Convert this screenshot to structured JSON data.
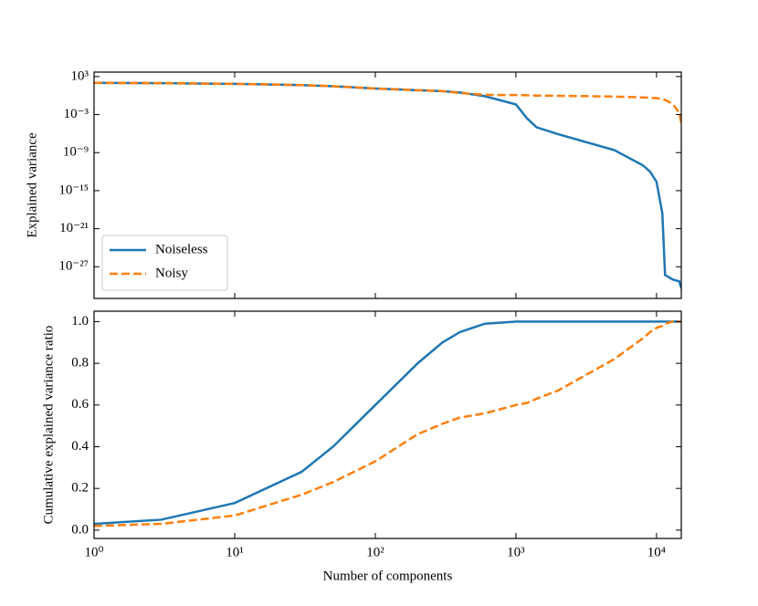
{
  "chart_data": [
    {
      "type": "line",
      "ylabel": "Explained variance",
      "xscale": "log",
      "yscale": "log",
      "x": [
        1,
        3,
        10,
        30,
        50,
        100,
        200,
        300,
        400,
        600,
        1000,
        1200,
        1400,
        2000,
        5000,
        8000,
        9000,
        10000,
        11000,
        11500,
        13000,
        14500,
        15000
      ],
      "xlim": [
        1,
        15000
      ],
      "xticks": [
        1,
        10,
        100,
        1000,
        10000
      ],
      "ylim": [
        1e-32,
        5000
      ],
      "yticks": [
        {
          "value": 1000,
          "label": "10³"
        },
        {
          "value": 0.001,
          "label": "10⁻³"
        },
        {
          "value": 1e-09,
          "label": "10⁻⁹"
        },
        {
          "value": 1e-15,
          "label": "10⁻¹⁵"
        },
        {
          "value": 1e-21,
          "label": "10⁻²¹"
        },
        {
          "value": 1e-27,
          "label": "10⁻²⁷"
        }
      ],
      "legend": "lower left",
      "series": [
        {
          "name": "Noiseless",
          "color": "#1f77b4",
          "dash": "solid",
          "values": [
            100,
            90,
            70,
            45,
            30,
            13,
            7,
            5,
            3,
            0.8,
            0.04,
            0.00025,
            1e-05,
            8e-07,
            2.5e-09,
            1e-11,
            1e-12,
            2.5e-14,
            2.5e-19,
            5e-29,
            1e-29,
            5e-30,
            4e-31
          ]
        },
        {
          "name": "Noisy",
          "color": "#ff7f0e",
          "dash": "dashed",
          "values": [
            100,
            90,
            70,
            45,
            30,
            13,
            7,
            5,
            2.5,
            1.3,
            1.2,
            1.1,
            1.0,
            0.9,
            0.7,
            0.5,
            0.45,
            0.4,
            0.3,
            0.2,
            0.05,
            0.002,
            5e-05
          ]
        }
      ]
    },
    {
      "type": "line",
      "ylabel": "Cumulative explained variance ratio",
      "xlabel": "Number of components",
      "xscale": "log",
      "yscale": "linear",
      "x": [
        1,
        3,
        10,
        30,
        50,
        100,
        200,
        300,
        400,
        600,
        1000,
        1200,
        1400,
        2000,
        5000,
        8000,
        9000,
        10000,
        11000,
        11500,
        13000,
        14500,
        15000
      ],
      "xlim": [
        1,
        15000
      ],
      "xticks": [
        {
          "value": 1,
          "label": "10⁰"
        },
        {
          "value": 10,
          "label": "10¹"
        },
        {
          "value": 100,
          "label": "10²"
        },
        {
          "value": 1000,
          "label": "10³"
        },
        {
          "value": 10000,
          "label": "10⁴"
        }
      ],
      "ylim": [
        -0.04,
        1.05
      ],
      "yticks": [
        {
          "value": 0,
          "label": "0.0"
        },
        0.2,
        0.4,
        0.6,
        0.8,
        {
          "value": 1,
          "label": "1.0"
        }
      ],
      "series": [
        {
          "name": "Noiseless",
          "color": "#1f77b4",
          "dash": "solid",
          "values": [
            0.03,
            0.05,
            0.13,
            0.28,
            0.4,
            0.6,
            0.8,
            0.9,
            0.95,
            0.99,
            1,
            1,
            1,
            1,
            1,
            1,
            1,
            1,
            1,
            1,
            1,
            1,
            1
          ]
        },
        {
          "name": "Noisy",
          "color": "#ff7f0e",
          "dash": "dashed",
          "values": [
            0.02,
            0.03,
            0.07,
            0.17,
            0.23,
            0.33,
            0.46,
            0.51,
            0.54,
            0.56,
            0.6,
            0.61,
            0.63,
            0.67,
            0.82,
            0.92,
            0.95,
            0.97,
            0.98,
            0.99,
            1,
            1,
            1
          ]
        }
      ]
    }
  ]
}
